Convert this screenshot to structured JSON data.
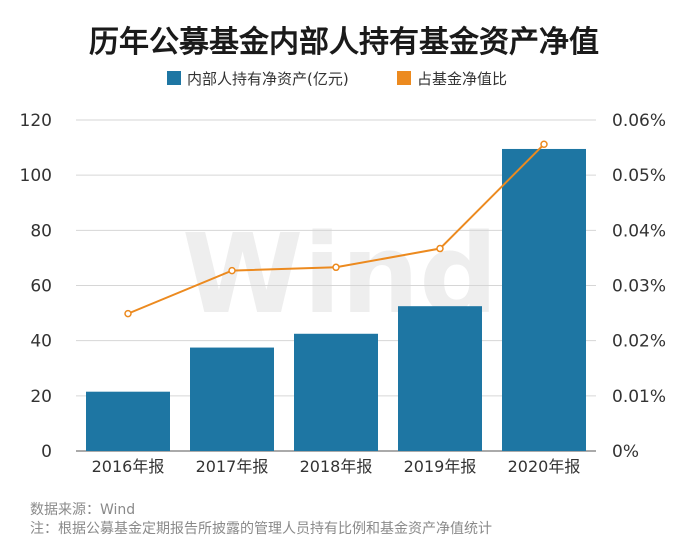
{
  "chart_data": {
    "type": "bar",
    "title": "历年公募基金内部人持有基金资产净值",
    "categories": [
      "2016年报",
      "2017年报",
      "2018年报",
      "2019年报",
      "2020年报"
    ],
    "series": [
      {
        "name": "内部人持有净资产(亿元)",
        "type": "bar",
        "axis": "left",
        "color": "#1e76a3",
        "values": [
          21.5,
          37.5,
          42.5,
          52.5,
          109.5
        ]
      },
      {
        "name": "占基金净值比",
        "type": "line",
        "axis": "right",
        "color": "#ec8a1f",
        "values": [
          0.0249,
          0.0327,
          0.0333,
          0.0367,
          0.0556
        ]
      }
    ],
    "ylim": [
      0,
      120
    ],
    "yticks": [
      "0",
      "20",
      "40",
      "60",
      "80",
      "100",
      "120"
    ],
    "y2lim": [
      0,
      0.06
    ],
    "y2ticks": [
      "0%",
      "0.01%",
      "0.02%",
      "0.03%",
      "0.04%",
      "0.05%",
      "0.06%"
    ],
    "grid": true,
    "legend": "top-center"
  },
  "watermark": "Wind",
  "footer": {
    "source": "数据来源：Wind",
    "note": "注：根据公募基金定期报告所披露的管理人员持有比例和基金资产净值统计"
  }
}
